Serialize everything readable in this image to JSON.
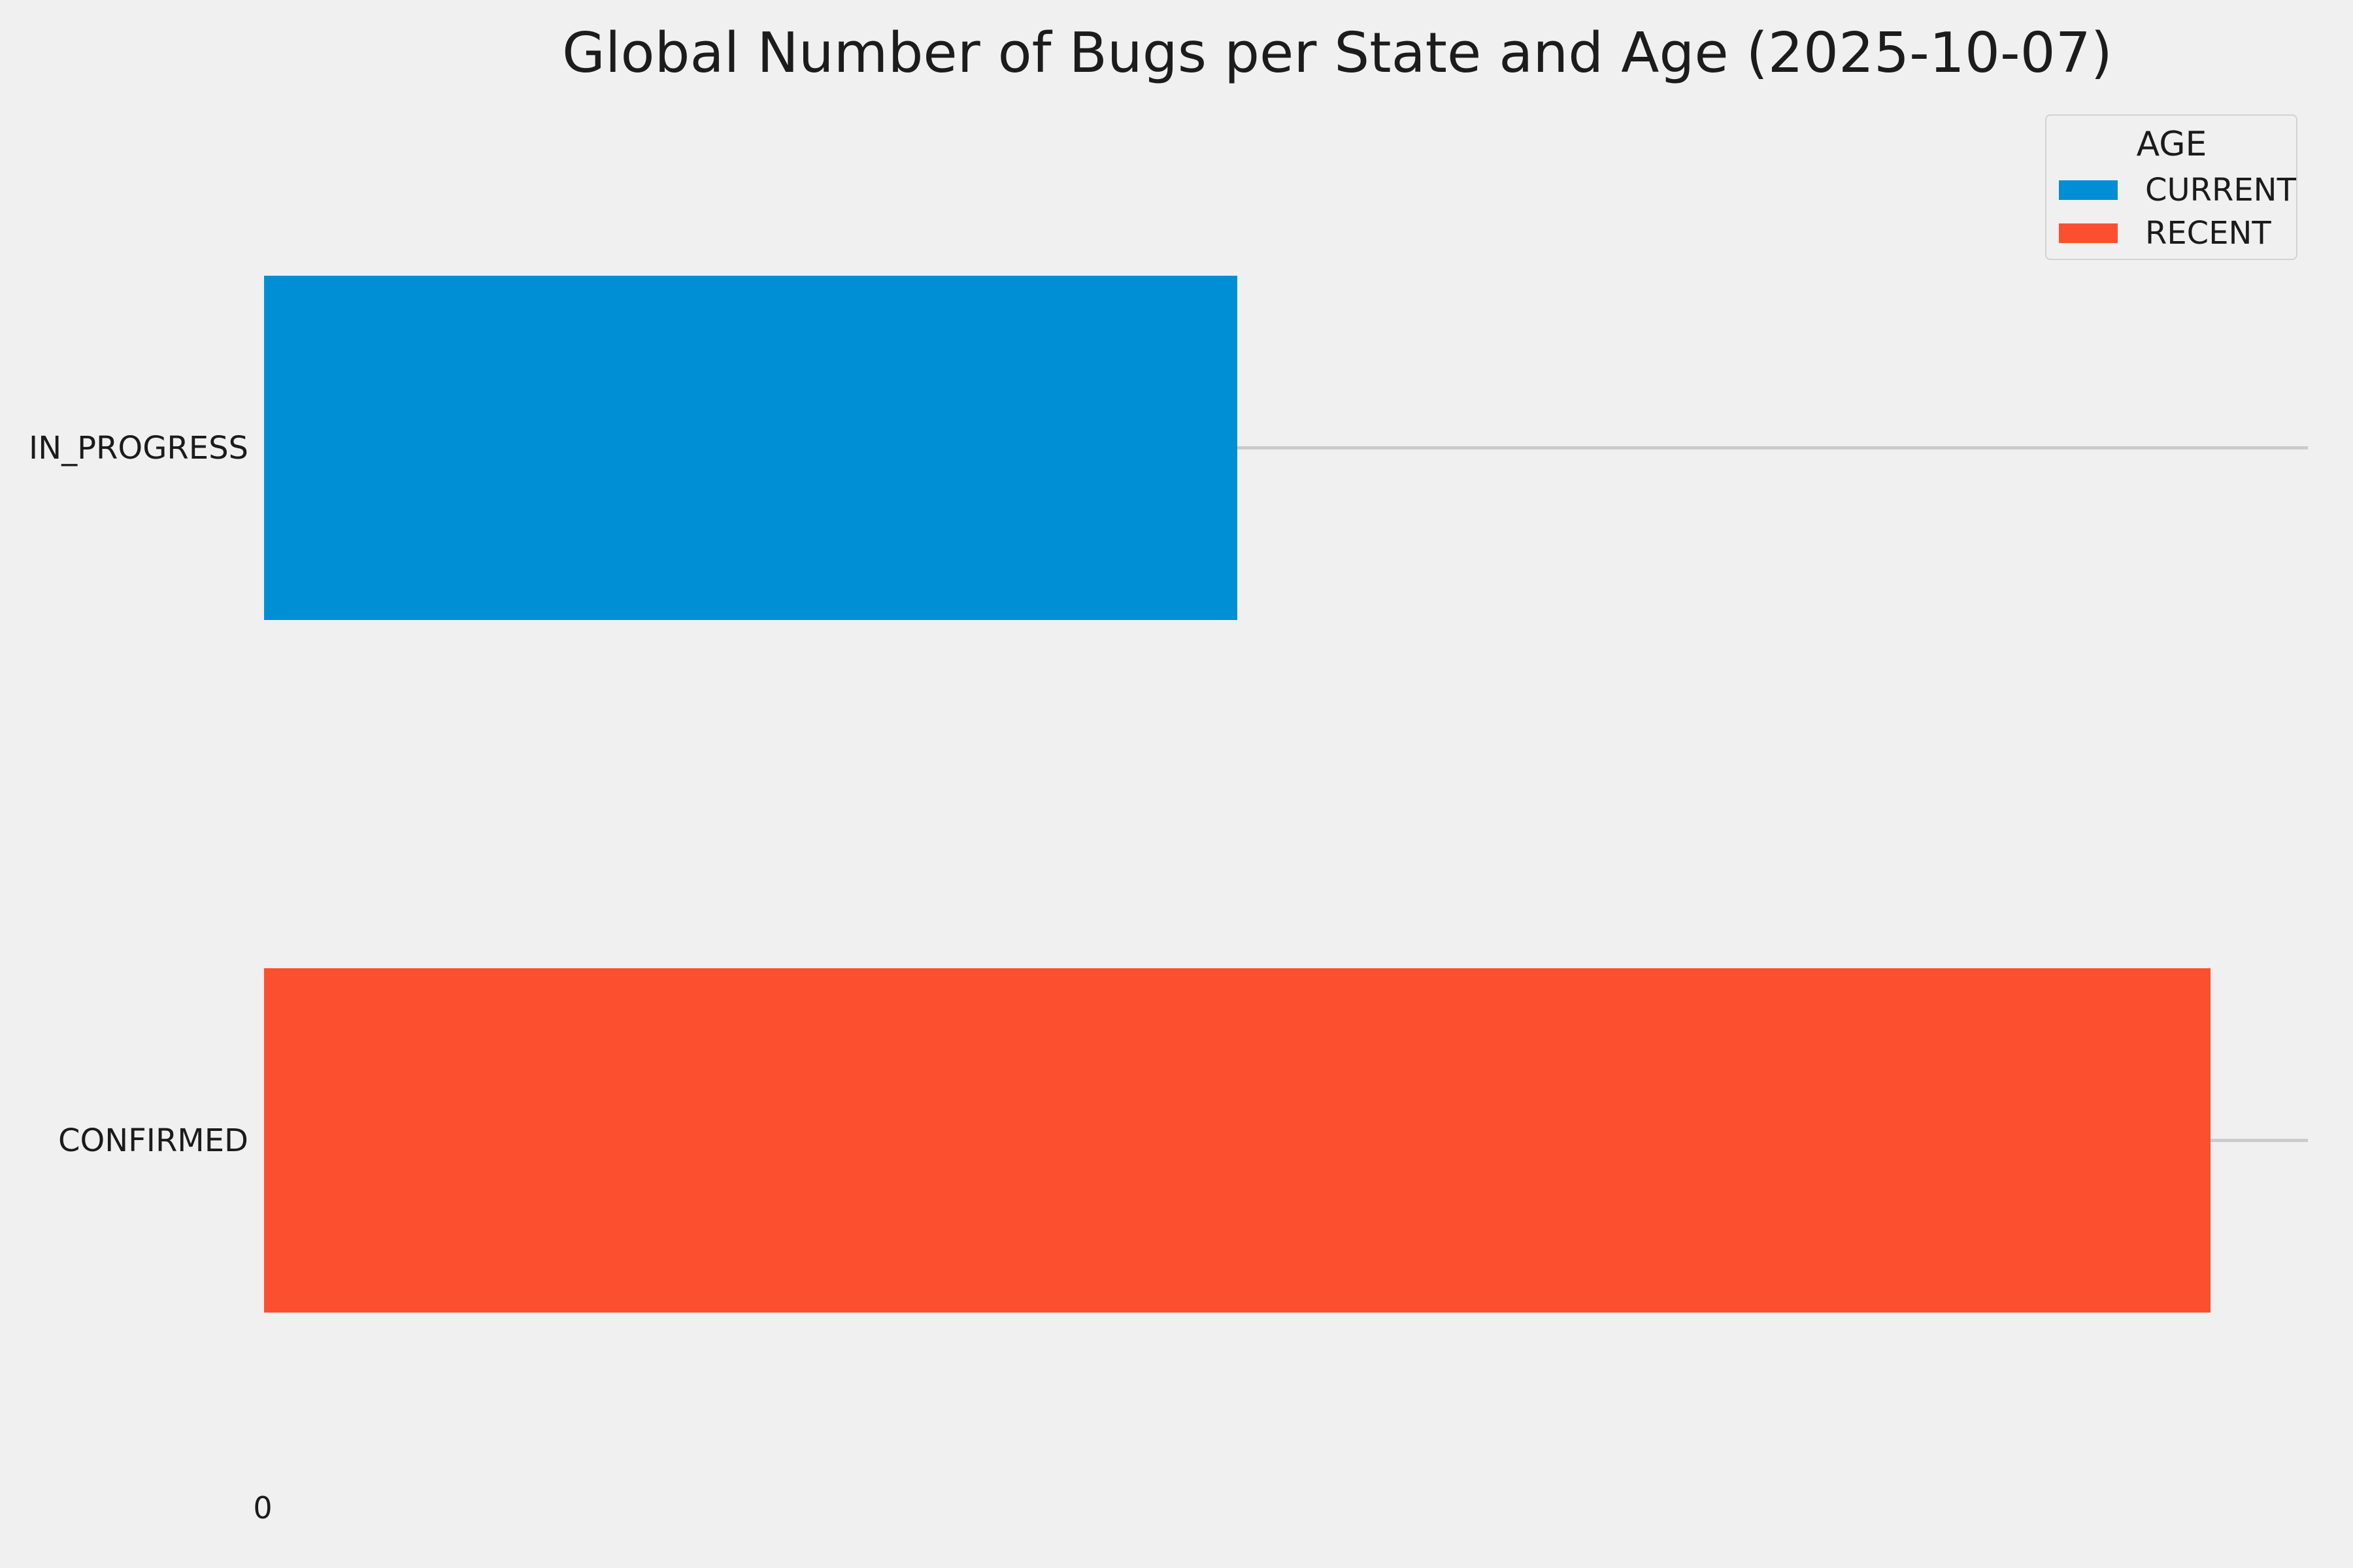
{
  "chart_data": {
    "type": "bar",
    "orientation": "horizontal",
    "title": "Global Number of Bugs per State and Age (2025-10-07)",
    "categories": [
      "IN_PROGRESS",
      "CONFIRMED"
    ],
    "bars": [
      {
        "label": "IN_PROGRESS",
        "series": "CURRENT",
        "value": 1,
        "color": "#008fd5"
      },
      {
        "label": "CONFIRMED",
        "series": "RECENT",
        "value": 2,
        "color": "#fc4f30"
      }
    ],
    "series": [
      {
        "name": "CURRENT",
        "color": "#008fd5",
        "values": [
          1,
          0
        ]
      },
      {
        "name": "RECENT",
        "color": "#fc4f30",
        "values": [
          0,
          2
        ]
      }
    ],
    "axis": {
      "xlim": [
        0,
        2.1
      ],
      "xmax": 2.1,
      "ticks": [
        "0"
      ],
      "grid": "horizontal-category-lines"
    },
    "style": {
      "background": "#f0f0f0",
      "gridline_color": "#cbcbcb",
      "text_color": "#1b1b1b"
    },
    "legend": {
      "title": "AGE",
      "position": "upper-right",
      "entries": [
        {
          "label": "CURRENT",
          "color": "#008fd5"
        },
        {
          "label": "RECENT",
          "color": "#fc4f30"
        }
      ]
    }
  }
}
